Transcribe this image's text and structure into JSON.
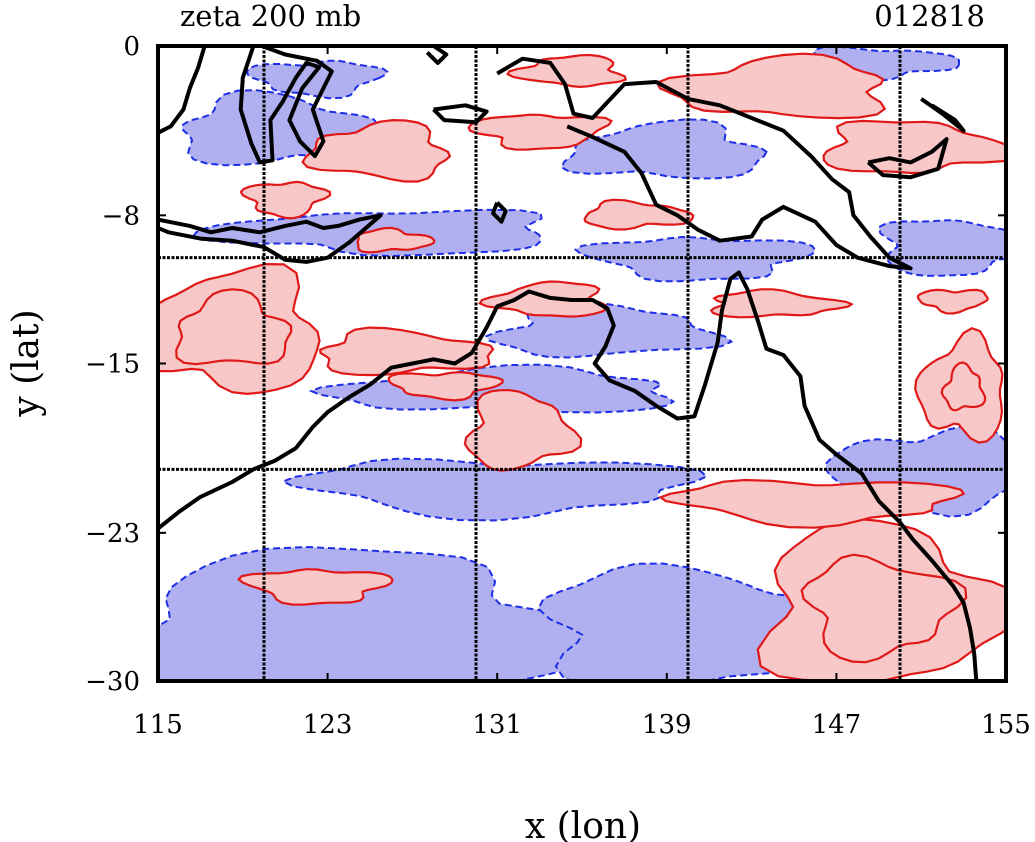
{
  "chart_data": {
    "type": "contour map",
    "title_left": "zeta 200 mb",
    "title_right": "012818",
    "xlabel": "x (lon)",
    "ylabel": "y (lat)",
    "xlim": [
      115,
      155
    ],
    "ylim": [
      -30,
      0
    ],
    "x_ticks": [
      "115",
      "123",
      "131",
      "139",
      "147",
      "155"
    ],
    "y_ticks": [
      "0",
      "−8",
      "−15",
      "−23",
      "−30"
    ],
    "graticule_lon": [
      120,
      130,
      140,
      150
    ],
    "graticule_lat": [
      -10,
      -20
    ],
    "colors": {
      "positive_fill": "#f8c8c8",
      "positive_contour": "#e01818",
      "negative_fill": "#b0b0f0",
      "negative_contour": "#1e2ee6",
      "coastline": "#000000"
    },
    "positive_regions": [
      {
        "lon": 149,
        "lat": -26.5,
        "rlon": 5.5,
        "rlat": 3.8
      },
      {
        "lon": 146,
        "lat": -21.5,
        "rlon": 6.5,
        "rlat": 1.0
      },
      {
        "lon": 153,
        "lat": -16.2,
        "rlon": 2.0,
        "rlat": 2.3
      },
      {
        "lon": 132,
        "lat": -18.2,
        "rlon": 2.4,
        "rlat": 1.8
      },
      {
        "lon": 122.5,
        "lat": -25.5,
        "rlon": 3.2,
        "rlat": 0.8
      },
      {
        "lon": 118.5,
        "lat": -13.5,
        "rlon": 4.2,
        "rlat": 2.8
      },
      {
        "lon": 126.5,
        "lat": -14.5,
        "rlon": 4.0,
        "rlat": 1.0
      },
      {
        "lon": 128.5,
        "lat": -16.0,
        "rlon": 2.5,
        "rlat": 0.6
      },
      {
        "lon": 133.5,
        "lat": -12.0,
        "rlon": 2.6,
        "rlat": 0.8
      },
      {
        "lon": 144,
        "lat": -12.2,
        "rlon": 3.0,
        "rlat": 0.6
      },
      {
        "lon": 152.5,
        "lat": -12.0,
        "rlon": 1.6,
        "rlat": 0.5
      },
      {
        "lon": 144.5,
        "lat": -2.0,
        "rlon": 5.0,
        "rlat": 1.4
      },
      {
        "lon": 150.5,
        "lat": -4.8,
        "rlon": 4.2,
        "rlat": 1.2
      },
      {
        "lon": 133,
        "lat": -4.0,
        "rlon": 3.0,
        "rlat": 0.8
      },
      {
        "lon": 125.5,
        "lat": -5.0,
        "rlon": 3.2,
        "rlat": 1.3
      },
      {
        "lon": 137.5,
        "lat": -8.0,
        "rlon": 2.5,
        "rlat": 0.6
      },
      {
        "lon": 121,
        "lat": -7.2,
        "rlon": 1.8,
        "rlat": 0.8
      },
      {
        "lon": 134.5,
        "lat": -1.2,
        "rlon": 2.4,
        "rlat": 0.7
      },
      {
        "lon": 126,
        "lat": -9.2,
        "rlon": 1.8,
        "rlat": 0.5
      }
    ],
    "negative_regions": [
      {
        "lon": 124,
        "lat": -27.5,
        "rlon": 11,
        "rlat": 3.5
      },
      {
        "lon": 140,
        "lat": -27.5,
        "rlon": 7,
        "rlat": 2.8
      },
      {
        "lon": 131,
        "lat": -20.8,
        "rlon": 9,
        "rlat": 1.3
      },
      {
        "lon": 151.5,
        "lat": -20.0,
        "rlon": 4.5,
        "rlat": 1.8
      },
      {
        "lon": 131.5,
        "lat": -16.3,
        "rlon": 8,
        "rlat": 1.0
      },
      {
        "lon": 136,
        "lat": -13.5,
        "rlon": 5,
        "rlat": 1.2
      },
      {
        "lon": 152.5,
        "lat": -9.5,
        "rlon": 3.5,
        "rlat": 1.3
      },
      {
        "lon": 140.5,
        "lat": -10.0,
        "rlon": 5,
        "rlat": 1.0
      },
      {
        "lon": 126,
        "lat": -8.8,
        "rlon": 8,
        "rlat": 1.0
      },
      {
        "lon": 139,
        "lat": -5.0,
        "rlon": 4.5,
        "rlat": 1.3
      },
      {
        "lon": 120.5,
        "lat": -4.0,
        "rlon": 4.5,
        "rlat": 1.6
      },
      {
        "lon": 149,
        "lat": -0.8,
        "rlon": 3.5,
        "rlat": 0.7
      },
      {
        "lon": 122.5,
        "lat": -1.5,
        "rlon": 3.0,
        "rlat": 0.8
      }
    ],
    "coastlines": [
      {
        "name": "northern-australia",
        "points": [
          [
            115,
            -22.8
          ],
          [
            116,
            -22.0
          ],
          [
            117,
            -21.3
          ],
          [
            118.5,
            -20.6
          ],
          [
            119.5,
            -20.0
          ],
          [
            120.5,
            -19.6
          ],
          [
            121.5,
            -19.0
          ],
          [
            122.3,
            -18.0
          ],
          [
            123,
            -17.3
          ],
          [
            124,
            -16.6
          ],
          [
            125,
            -16.0
          ],
          [
            126,
            -15.2
          ],
          [
            127,
            -15.0
          ],
          [
            128,
            -14.8
          ],
          [
            129,
            -15.0
          ],
          [
            129.8,
            -14.5
          ],
          [
            130.5,
            -13.3
          ],
          [
            131,
            -12.3
          ],
          [
            131.8,
            -12.0
          ],
          [
            132.5,
            -11.6
          ],
          [
            133.5,
            -11.9
          ],
          [
            134.5,
            -12.0
          ],
          [
            135.5,
            -12.0
          ],
          [
            136.2,
            -12.4
          ],
          [
            136.5,
            -13.2
          ],
          [
            136.1,
            -14.2
          ],
          [
            135.6,
            -15.0
          ],
          [
            136.3,
            -15.8
          ],
          [
            137.5,
            -16.3
          ],
          [
            138.5,
            -17.0
          ],
          [
            139.5,
            -17.6
          ],
          [
            140.3,
            -17.5
          ],
          [
            140.8,
            -16.0
          ],
          [
            141.4,
            -14.0
          ],
          [
            141.6,
            -12.5
          ],
          [
            142.0,
            -11.0
          ],
          [
            142.4,
            -10.7
          ],
          [
            142.8,
            -11.5
          ],
          [
            143.3,
            -13.0
          ],
          [
            143.7,
            -14.3
          ],
          [
            144.5,
            -14.6
          ],
          [
            145.3,
            -15.6
          ],
          [
            145.5,
            -17.0
          ],
          [
            146.2,
            -18.6
          ],
          [
            147.0,
            -19.3
          ],
          [
            148.2,
            -20.2
          ],
          [
            149.0,
            -21.5
          ],
          [
            150.0,
            -22.5
          ],
          [
            150.6,
            -23.3
          ],
          [
            151.5,
            -24.3
          ],
          [
            152.5,
            -25.5
          ],
          [
            153.0,
            -26.3
          ],
          [
            153.3,
            -27.5
          ],
          [
            153.5,
            -28.7
          ],
          [
            153.6,
            -30.0
          ]
        ]
      },
      {
        "name": "new-guinea-south",
        "points": [
          [
            131,
            -1.3
          ],
          [
            132.2,
            -0.6
          ],
          [
            133.5,
            -0.8
          ],
          [
            134.2,
            -1.8
          ],
          [
            134.6,
            -3.2
          ],
          [
            135.5,
            -3.4
          ],
          [
            137.0,
            -1.8
          ],
          [
            138.5,
            -1.7
          ],
          [
            140.0,
            -2.5
          ],
          [
            141.5,
            -2.8
          ],
          [
            143.0,
            -3.4
          ],
          [
            144.5,
            -4.0
          ],
          [
            145.8,
            -5.2
          ],
          [
            146.8,
            -6.3
          ],
          [
            147.6,
            -6.9
          ],
          [
            147.8,
            -8.0
          ],
          [
            148.6,
            -9.0
          ],
          [
            149.5,
            -10.0
          ],
          [
            150.5,
            -10.5
          ],
          [
            149.5,
            -10.4
          ],
          [
            148.0,
            -10.0
          ],
          [
            147.0,
            -9.4
          ],
          [
            146.0,
            -8.3
          ],
          [
            144.5,
            -7.6
          ],
          [
            143.5,
            -8.2
          ],
          [
            143.0,
            -9.0
          ],
          [
            141.5,
            -9.2
          ],
          [
            140.5,
            -8.7
          ],
          [
            139.5,
            -8.0
          ],
          [
            138.5,
            -7.5
          ],
          [
            137.8,
            -6.0
          ],
          [
            137.0,
            -5.0
          ],
          [
            135.5,
            -4.3
          ],
          [
            134.3,
            -3.8
          ]
        ]
      },
      {
        "name": "new-britain",
        "points": [
          [
            148.5,
            -5.5
          ],
          [
            149.5,
            -5.3
          ],
          [
            150.5,
            -5.5
          ],
          [
            151.5,
            -5.0
          ],
          [
            152.2,
            -4.4
          ],
          [
            151.8,
            -5.8
          ],
          [
            150.5,
            -6.2
          ],
          [
            149.2,
            -6.1
          ],
          [
            148.5,
            -5.5
          ]
        ]
      },
      {
        "name": "nusa-tenggara",
        "points": [
          [
            115,
            -8.2
          ],
          [
            116.5,
            -8.5
          ],
          [
            117.5,
            -8.8
          ],
          [
            118.5,
            -8.6
          ],
          [
            119.8,
            -8.8
          ],
          [
            121.0,
            -8.5
          ],
          [
            122.0,
            -8.3
          ],
          [
            122.8,
            -8.6
          ],
          [
            123.5,
            -8.5
          ],
          [
            124.5,
            -8.2
          ],
          [
            125.5,
            -8.0
          ],
          [
            124.0,
            -9.3
          ],
          [
            123.0,
            -10.0
          ],
          [
            122.0,
            -10.2
          ],
          [
            121.0,
            -10.1
          ],
          [
            120.0,
            -9.5
          ],
          [
            118.5,
            -9.2
          ],
          [
            117.0,
            -9.1
          ],
          [
            115.5,
            -8.8
          ],
          [
            115,
            -8.6
          ]
        ]
      },
      {
        "name": "sulawesi",
        "points": [
          [
            119.5,
            0
          ],
          [
            119.0,
            -1.5
          ],
          [
            118.9,
            -3.0
          ],
          [
            119.4,
            -4.6
          ],
          [
            119.8,
            -5.5
          ],
          [
            120.4,
            -5.4
          ],
          [
            120.3,
            -3.5
          ],
          [
            120.9,
            -2.6
          ],
          [
            121.5,
            -1.5
          ],
          [
            122.0,
            -0.8
          ],
          [
            122.6,
            -1.0
          ],
          [
            121.8,
            -2.0
          ],
          [
            121.2,
            -3.5
          ],
          [
            121.7,
            -4.5
          ],
          [
            122.4,
            -5.2
          ],
          [
            122.8,
            -4.5
          ],
          [
            122.3,
            -3.0
          ],
          [
            123.2,
            -1.2
          ],
          [
            122.5,
            -0.7
          ],
          [
            121.0,
            -0.4
          ],
          [
            119.9,
            0
          ]
        ]
      },
      {
        "name": "borneo-edge",
        "points": [
          [
            117.2,
            0
          ],
          [
            116.9,
            -1.0
          ],
          [
            116.5,
            -2.0
          ],
          [
            116.2,
            -3.0
          ],
          [
            115.6,
            -3.8
          ],
          [
            115,
            -4.1
          ]
        ]
      },
      {
        "name": "seram",
        "points": [
          [
            128.0,
            -3.0
          ],
          [
            129.5,
            -2.8
          ],
          [
            130.5,
            -3.1
          ],
          [
            130.0,
            -3.6
          ],
          [
            128.5,
            -3.5
          ],
          [
            128.0,
            -3.0
          ]
        ]
      },
      {
        "name": "halmahera",
        "points": [
          [
            127.7,
            -0.3
          ],
          [
            128.2,
            -0.8
          ],
          [
            128.6,
            -0.4
          ],
          [
            128.0,
            0
          ]
        ]
      },
      {
        "name": "tanimbar",
        "points": [
          [
            131.0,
            -7.4
          ],
          [
            131.4,
            -7.8
          ],
          [
            131.2,
            -8.3
          ],
          [
            130.8,
            -7.9
          ],
          [
            131.0,
            -7.4
          ]
        ]
      },
      {
        "name": "bismarck-north",
        "points": [
          [
            151.0,
            -2.5
          ],
          [
            152.0,
            -3.2
          ],
          [
            153.0,
            -4.0
          ],
          [
            152.6,
            -3.5
          ],
          [
            151.5,
            -2.8
          ]
        ]
      }
    ]
  }
}
